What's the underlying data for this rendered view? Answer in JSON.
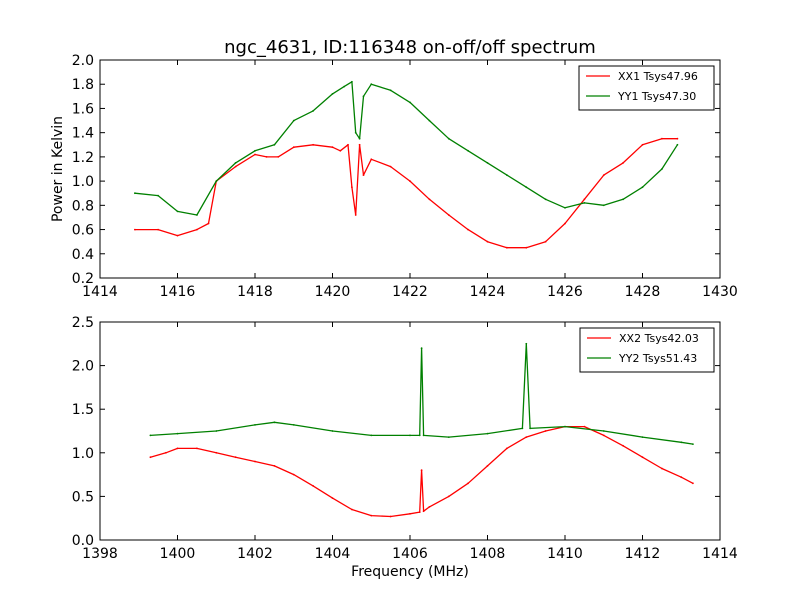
{
  "figure": {
    "title": "ngc_4631, ID:116348 on-off/off spectrum",
    "xlabel": "Frequency (MHz)",
    "colors": {
      "xx": "#ff0000",
      "yy": "#008000",
      "axes": "#000000",
      "background": "#ffffff"
    }
  },
  "chart_data": [
    {
      "type": "line",
      "title": "ngc_4631, ID:116348 on-off/off spectrum",
      "xlabel": "",
      "ylabel": "Power in Kelvin",
      "xlim": [
        1414,
        1430
      ],
      "ylim": [
        0.2,
        2.0
      ],
      "xticks": [
        "1414",
        "1416",
        "1418",
        "1420",
        "1422",
        "1424",
        "1426",
        "1428",
        "1430"
      ],
      "yticks": [
        "0.2",
        "0.4",
        "0.6",
        "0.8",
        "1.0",
        "1.2",
        "1.4",
        "1.6",
        "1.8",
        "2.0"
      ],
      "grid": false,
      "legend_position": "top-right",
      "series": [
        {
          "name": "XX1 Tsys47.96",
          "color": "#ff0000",
          "x": [
            1414.9,
            1415.5,
            1416.0,
            1416.5,
            1416.8,
            1417.0,
            1417.5,
            1418.0,
            1418.3,
            1418.6,
            1419.0,
            1419.5,
            1420.0,
            1420.2,
            1420.4,
            1420.5,
            1420.6,
            1420.7,
            1420.8,
            1421.0,
            1421.5,
            1422.0,
            1422.5,
            1423.0,
            1423.5,
            1424.0,
            1424.5,
            1425.0,
            1425.5,
            1426.0,
            1426.5,
            1427.0,
            1427.5,
            1428.0,
            1428.5,
            1428.9
          ],
          "y": [
            0.6,
            0.6,
            0.55,
            0.6,
            0.65,
            1.0,
            1.12,
            1.22,
            1.2,
            1.2,
            1.28,
            1.3,
            1.28,
            1.25,
            1.3,
            0.95,
            0.72,
            1.3,
            1.05,
            1.18,
            1.12,
            1.0,
            0.85,
            0.72,
            0.6,
            0.5,
            0.45,
            0.45,
            0.5,
            0.65,
            0.85,
            1.05,
            1.15,
            1.3,
            1.35,
            1.35
          ]
        },
        {
          "name": "YY1 Tsys47.30",
          "color": "#008000",
          "x": [
            1414.9,
            1415.5,
            1416.0,
            1416.5,
            1417.0,
            1417.5,
            1418.0,
            1418.5,
            1419.0,
            1419.5,
            1420.0,
            1420.3,
            1420.5,
            1420.6,
            1420.7,
            1420.8,
            1421.0,
            1421.5,
            1422.0,
            1422.5,
            1423.0,
            1423.5,
            1424.0,
            1424.5,
            1425.0,
            1425.5,
            1426.0,
            1426.5,
            1427.0,
            1427.5,
            1428.0,
            1428.5,
            1428.9
          ],
          "y": [
            0.9,
            0.88,
            0.75,
            0.72,
            1.0,
            1.15,
            1.25,
            1.3,
            1.5,
            1.58,
            1.72,
            1.78,
            1.82,
            1.4,
            1.35,
            1.7,
            1.8,
            1.75,
            1.65,
            1.5,
            1.35,
            1.25,
            1.15,
            1.05,
            0.95,
            0.85,
            0.78,
            0.82,
            0.8,
            0.85,
            0.95,
            1.1,
            1.3
          ]
        }
      ]
    },
    {
      "type": "line",
      "title": "",
      "xlabel": "Frequency (MHz)",
      "ylabel": "",
      "xlim": [
        1398,
        1414
      ],
      "ylim": [
        0.0,
        2.5
      ],
      "xticks": [
        "1398",
        "1400",
        "1402",
        "1404",
        "1406",
        "1408",
        "1410",
        "1412",
        "1414"
      ],
      "yticks": [
        "0.0",
        "0.5",
        "1.0",
        "1.5",
        "2.0",
        "2.5"
      ],
      "grid": false,
      "legend_position": "top-right",
      "series": [
        {
          "name": "XX2 Tsys42.03",
          "color": "#ff0000",
          "x": [
            1399.3,
            1399.7,
            1400.0,
            1400.5,
            1401.0,
            1401.5,
            1402.0,
            1402.5,
            1403.0,
            1403.5,
            1404.0,
            1404.5,
            1405.0,
            1405.5,
            1406.0,
            1406.25,
            1406.3,
            1406.35,
            1406.5,
            1407.0,
            1407.5,
            1408.0,
            1408.5,
            1409.0,
            1409.5,
            1410.0,
            1410.5,
            1411.0,
            1411.5,
            1412.0,
            1412.5,
            1413.0,
            1413.3
          ],
          "y": [
            0.95,
            1.0,
            1.05,
            1.05,
            1.0,
            0.95,
            0.9,
            0.85,
            0.75,
            0.62,
            0.48,
            0.35,
            0.28,
            0.27,
            0.3,
            0.32,
            0.8,
            0.33,
            0.38,
            0.5,
            0.65,
            0.85,
            1.05,
            1.18,
            1.25,
            1.3,
            1.3,
            1.2,
            1.08,
            0.95,
            0.82,
            0.72,
            0.65
          ]
        },
        {
          "name": "YY2 Tsys51.43",
          "color": "#008000",
          "x": [
            1399.3,
            1400.0,
            1401.0,
            1402.0,
            1402.5,
            1403.0,
            1404.0,
            1405.0,
            1406.0,
            1406.25,
            1406.3,
            1406.35,
            1407.0,
            1408.0,
            1408.9,
            1409.0,
            1409.1,
            1410.0,
            1411.0,
            1412.0,
            1413.0,
            1413.3
          ],
          "y": [
            1.2,
            1.22,
            1.25,
            1.32,
            1.35,
            1.32,
            1.25,
            1.2,
            1.2,
            1.2,
            2.2,
            1.2,
            1.18,
            1.22,
            1.28,
            2.25,
            1.28,
            1.3,
            1.25,
            1.18,
            1.12,
            1.1
          ]
        }
      ]
    }
  ]
}
